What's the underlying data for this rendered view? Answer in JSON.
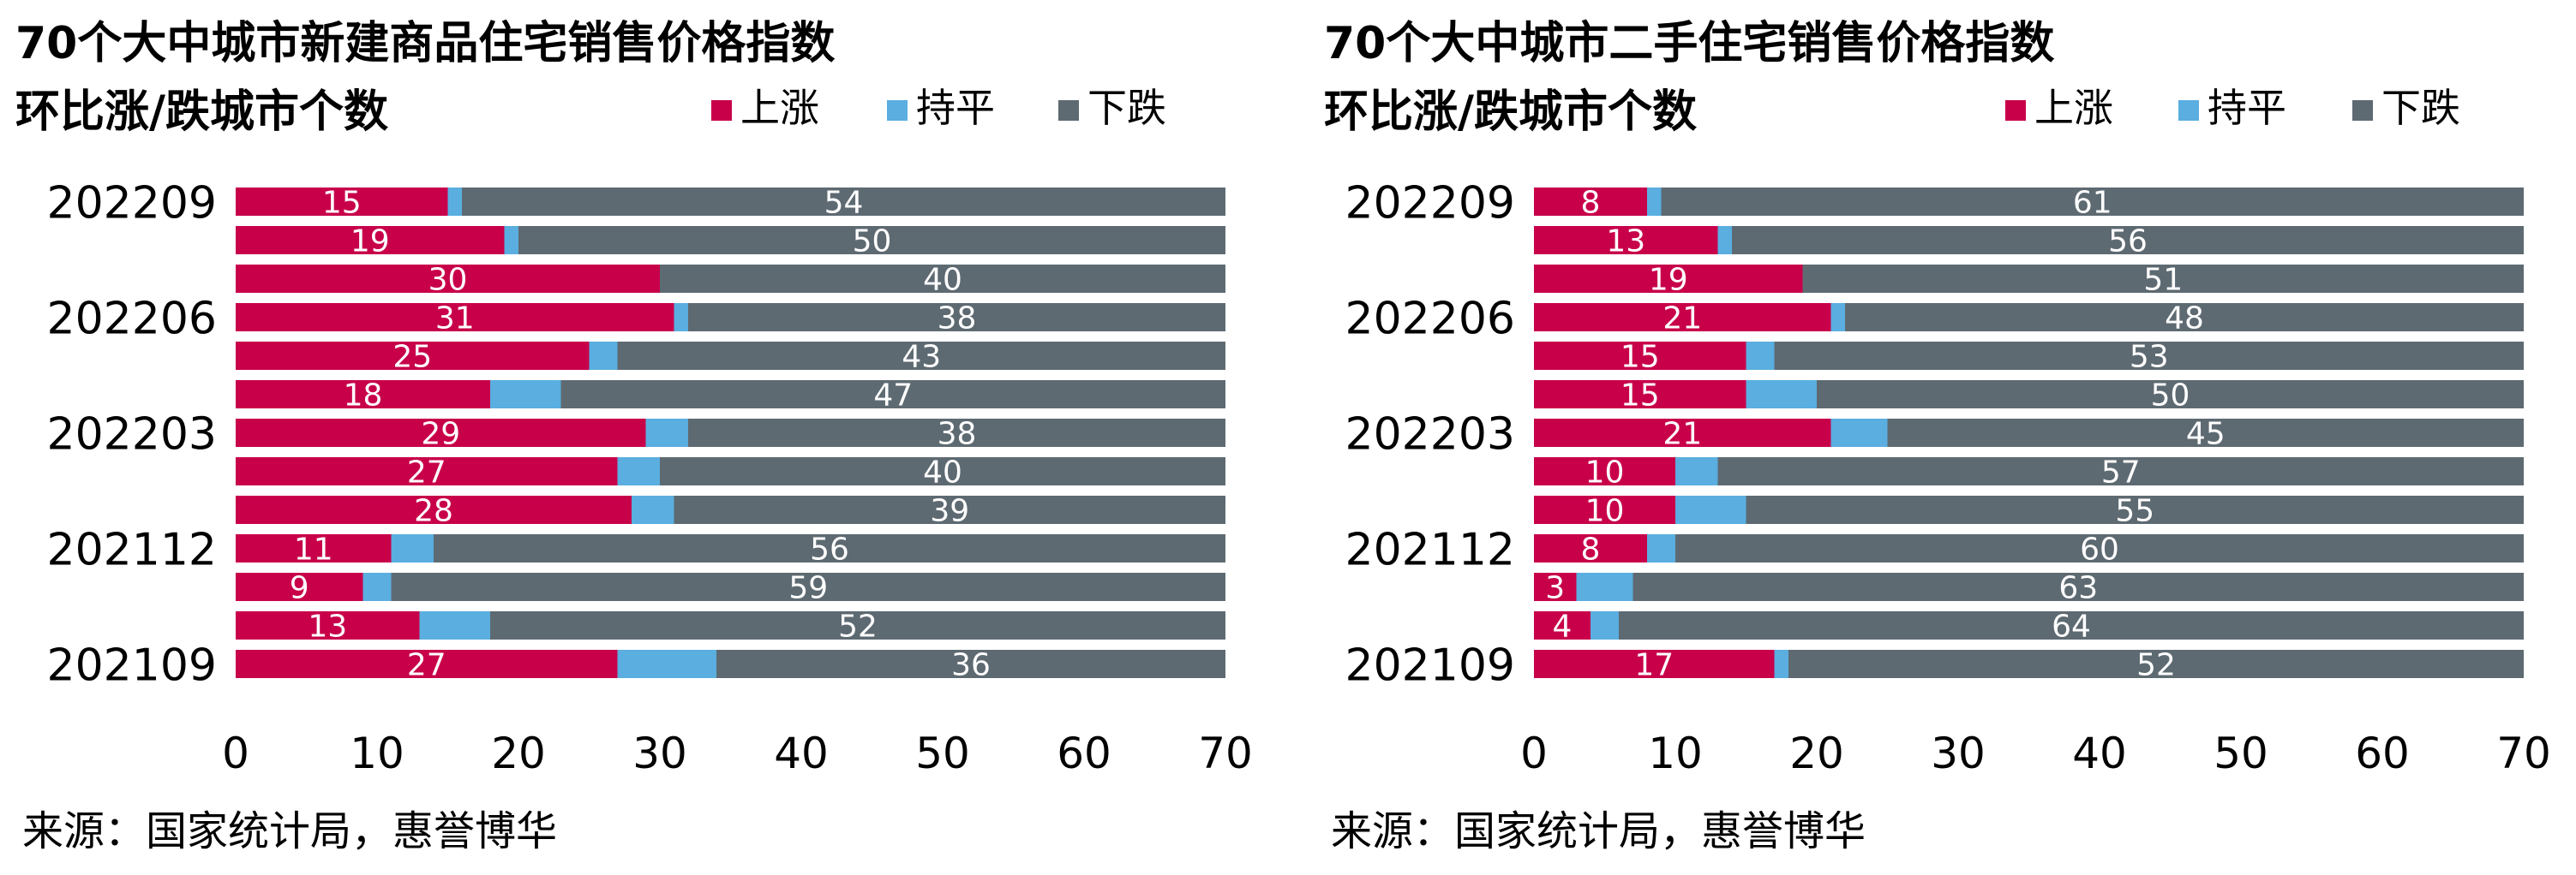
{
  "colors": {
    "up": "#C8004A",
    "flat": "#5AAEE0",
    "down": "#5E6A72"
  },
  "legend": {
    "up": "上涨",
    "flat": "持平",
    "down": "下跌"
  },
  "chart_data": [
    {
      "type": "bar",
      "orientation": "horizontal",
      "stacked": true,
      "title": "70个大中城市新建商品住宅销售价格指数",
      "subtitle": "环比涨/跌城市个数",
      "source": "来源：国家统计局，惠誉博华",
      "xlim": [
        0,
        70
      ],
      "xticks": [
        "0",
        "10",
        "20",
        "30",
        "40",
        "50",
        "60",
        "70"
      ],
      "category_labels": [
        "202209",
        "",
        "",
        "202206",
        "",
        "",
        "202203",
        "",
        "",
        "202112",
        "",
        "",
        "202109"
      ],
      "series": [
        {
          "name": "上涨",
          "values": [
            15,
            19,
            30,
            31,
            25,
            18,
            29,
            27,
            28,
            11,
            9,
            13,
            27
          ]
        },
        {
          "name": "持平",
          "values": [
            1,
            1,
            0,
            1,
            2,
            5,
            3,
            3,
            3,
            3,
            2,
            5,
            7
          ]
        },
        {
          "name": "下跌",
          "values": [
            54,
            50,
            40,
            38,
            43,
            47,
            38,
            40,
            39,
            56,
            59,
            52,
            36
          ]
        }
      ]
    },
    {
      "type": "bar",
      "orientation": "horizontal",
      "stacked": true,
      "title": "70个大中城市二手住宅销售价格指数",
      "subtitle": "环比涨/跌城市个数",
      "source": "来源：国家统计局，惠誉博华",
      "xlim": [
        0,
        70
      ],
      "xticks": [
        "0",
        "10",
        "20",
        "30",
        "40",
        "50",
        "60",
        "70"
      ],
      "category_labels": [
        "202209",
        "",
        "",
        "202206",
        "",
        "",
        "202203",
        "",
        "",
        "202112",
        "",
        "",
        "202109"
      ],
      "series": [
        {
          "name": "上涨",
          "values": [
            8,
            13,
            19,
            21,
            15,
            15,
            21,
            10,
            10,
            8,
            3,
            4,
            17
          ]
        },
        {
          "name": "持平",
          "values": [
            1,
            1,
            0,
            1,
            2,
            5,
            4,
            3,
            5,
            2,
            4,
            2,
            1
          ]
        },
        {
          "name": "下跌",
          "values": [
            61,
            56,
            51,
            48,
            53,
            50,
            45,
            57,
            55,
            60,
            63,
            64,
            52
          ]
        }
      ]
    }
  ]
}
